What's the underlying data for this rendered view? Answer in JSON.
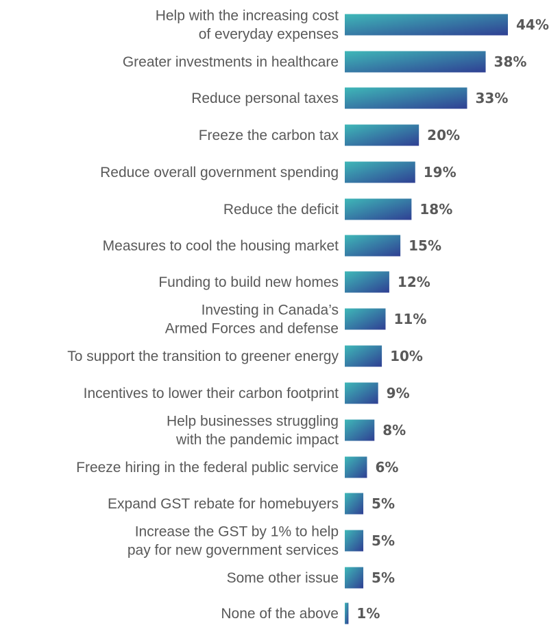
{
  "chart_data": {
    "type": "bar",
    "orientation": "horizontal",
    "title": "",
    "xlabel": "",
    "ylabel": "",
    "xlim": [
      0,
      44
    ],
    "grid": false,
    "legend": "none",
    "colors": {
      "gradient_start": "#3fb8b8",
      "gradient_end": "#2f3f93",
      "label_text": "#595959"
    },
    "categories": [
      "Help with the increasing cost of everyday expenses",
      "Greater investments in healthcare",
      "Reduce personal taxes",
      "Freeze the carbon tax",
      "Reduce overall government spending",
      "Reduce the deficit",
      "Measures to cool the housing market",
      "Funding to build new homes",
      "Investing in Canada’s Armed Forces and defense",
      "To support the transition to greener energy",
      "Incentives to lower their carbon footprint",
      "Help businesses struggling with the  pandemic impact",
      "Freeze hiring in the federal public service",
      "Expand GST rebate for homebuyers",
      "Increase the GST by 1% to help pay for new government services",
      "Some other issue",
      "None of the above"
    ],
    "category_lines": [
      [
        "Help with the increasing cost",
        "of everyday expenses"
      ],
      [
        "Greater investments in healthcare"
      ],
      [
        "Reduce personal taxes"
      ],
      [
        "Freeze the carbon tax"
      ],
      [
        "Reduce overall government spending"
      ],
      [
        "Reduce the deficit"
      ],
      [
        "Measures to cool the housing market"
      ],
      [
        "Funding to build new homes"
      ],
      [
        "Investing in Canada’s",
        "Armed Forces and defense"
      ],
      [
        "To support the transition to greener energy"
      ],
      [
        "Incentives to lower their carbon footprint"
      ],
      [
        "Help businesses struggling",
        "with the  pandemic impact"
      ],
      [
        "Freeze hiring in the federal public service"
      ],
      [
        "Expand GST rebate for homebuyers"
      ],
      [
        "Increase the GST by 1% to help",
        "pay for new government services"
      ],
      [
        "Some other issue"
      ],
      [
        "None of the above"
      ]
    ],
    "values": [
      44,
      38,
      33,
      20,
      19,
      18,
      15,
      12,
      11,
      10,
      9,
      8,
      6,
      5,
      5,
      5,
      1
    ],
    "value_labels": [
      "44%",
      "38%",
      "33%",
      "20%",
      "19%",
      "18%",
      "15%",
      "12%",
      "11%",
      "10%",
      "9%",
      "8%",
      "6%",
      "5%",
      "5%",
      "5%",
      "1%"
    ]
  }
}
